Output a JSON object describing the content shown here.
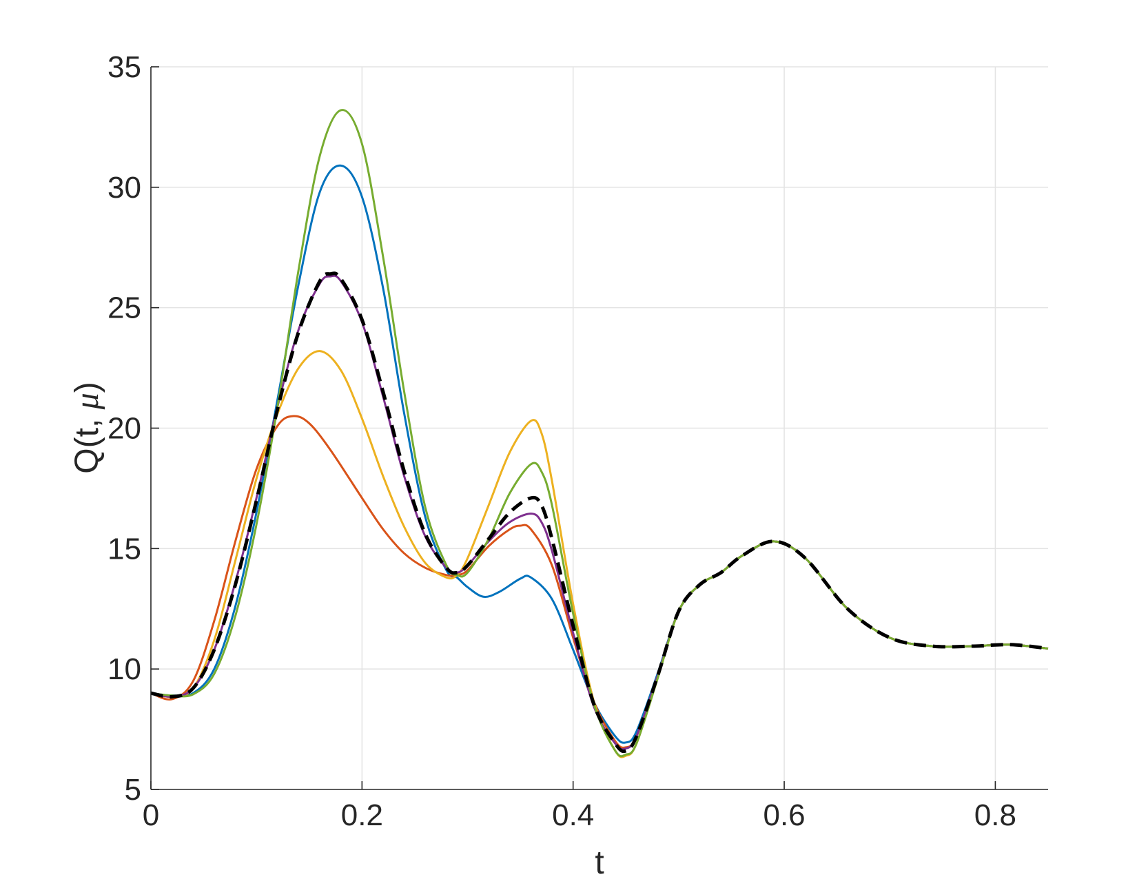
{
  "chart_data": {
    "type": "line",
    "title": "",
    "xlabel": "t",
    "ylabel": "Q(t, μ)",
    "ylabel_parts": {
      "prefix": "Q(t, ",
      "symbol": "μ",
      "suffix": ")"
    },
    "xlim": [
      0,
      0.85
    ],
    "ylim": [
      5,
      35
    ],
    "xticks": [
      0,
      0.2,
      0.4,
      0.6,
      0.8
    ],
    "xtick_labels": [
      "0",
      "0.2",
      "0.4",
      "0.6",
      "0.8"
    ],
    "yticks": [
      5,
      10,
      15,
      20,
      25,
      30,
      35
    ],
    "ytick_labels": [
      "5",
      "10",
      "15",
      "20",
      "25",
      "30",
      "35"
    ],
    "grid": true,
    "legend": "none",
    "series": [
      {
        "color": "#000000",
        "style": "dashed",
        "x": [
          0,
          0.02,
          0.04,
          0.06,
          0.08,
          0.1,
          0.12,
          0.14,
          0.16,
          0.17,
          0.18,
          0.2,
          0.22,
          0.24,
          0.26,
          0.28,
          0.29,
          0.3,
          0.32,
          0.34,
          0.36,
          0.37,
          0.38,
          0.4,
          0.42,
          0.44,
          0.45,
          0.46,
          0.48,
          0.5,
          0.52,
          0.54,
          0.56,
          0.59,
          0.62,
          0.66,
          0.7,
          0.74,
          0.78,
          0.8,
          0.82,
          0.85
        ],
        "y": [
          9.0,
          8.85,
          9.2,
          10.8,
          13.5,
          17.0,
          20.8,
          24.0,
          26.1,
          26.4,
          26.2,
          24.5,
          21.5,
          18.2,
          15.6,
          14.2,
          14.0,
          14.3,
          15.4,
          16.5,
          17.1,
          16.8,
          15.4,
          11.8,
          8.5,
          6.9,
          6.6,
          7.2,
          9.7,
          12.4,
          13.5,
          14.0,
          14.7,
          15.3,
          14.6,
          12.5,
          11.3,
          10.95,
          10.95,
          11.0,
          11.0,
          10.85
        ]
      },
      {
        "color": "#0072BD",
        "style": "solid",
        "x": [
          0,
          0.02,
          0.04,
          0.06,
          0.08,
          0.1,
          0.12,
          0.14,
          0.16,
          0.18,
          0.2,
          0.22,
          0.24,
          0.26,
          0.28,
          0.29,
          0.3,
          0.315,
          0.33,
          0.35,
          0.36,
          0.38,
          0.4,
          0.42,
          0.44,
          0.45,
          0.46,
          0.48,
          0.5,
          0.52,
          0.54,
          0.56,
          0.59,
          0.62,
          0.66,
          0.7,
          0.74,
          0.78,
          0.8,
          0.82,
          0.85
        ],
        "y": [
          9.0,
          8.9,
          9.0,
          10.0,
          12.6,
          16.5,
          21.2,
          26.0,
          29.8,
          30.9,
          29.6,
          25.8,
          20.6,
          16.3,
          14.1,
          13.8,
          13.4,
          13.0,
          13.2,
          13.75,
          13.8,
          12.9,
          10.8,
          8.6,
          7.2,
          6.95,
          7.4,
          9.8,
          12.4,
          13.5,
          14.0,
          14.7,
          15.3,
          14.6,
          12.5,
          11.3,
          10.95,
          10.95,
          11.0,
          11.0,
          10.85
        ]
      },
      {
        "color": "#D95319",
        "style": "solid",
        "x": [
          0,
          0.02,
          0.04,
          0.06,
          0.08,
          0.1,
          0.12,
          0.135,
          0.15,
          0.17,
          0.2,
          0.22,
          0.24,
          0.26,
          0.28,
          0.29,
          0.3,
          0.32,
          0.34,
          0.35,
          0.36,
          0.38,
          0.4,
          0.42,
          0.44,
          0.45,
          0.46,
          0.48,
          0.5,
          0.52,
          0.54,
          0.56,
          0.59,
          0.62,
          0.66,
          0.7,
          0.74,
          0.78,
          0.8,
          0.82,
          0.85
        ],
        "y": [
          9.0,
          8.75,
          9.5,
          12.0,
          15.3,
          18.3,
          20.1,
          20.5,
          20.2,
          19.1,
          17.1,
          15.8,
          14.8,
          14.2,
          13.9,
          13.9,
          14.1,
          15.1,
          15.8,
          15.95,
          15.8,
          14.3,
          11.3,
          8.6,
          7.0,
          6.75,
          7.2,
          9.7,
          12.4,
          13.5,
          14.0,
          14.7,
          15.3,
          14.6,
          12.5,
          11.3,
          10.95,
          10.95,
          11.0,
          11.0,
          10.85
        ]
      },
      {
        "color": "#EDB120",
        "style": "solid",
        "x": [
          0,
          0.02,
          0.04,
          0.06,
          0.08,
          0.1,
          0.12,
          0.14,
          0.16,
          0.18,
          0.2,
          0.22,
          0.24,
          0.26,
          0.28,
          0.29,
          0.3,
          0.32,
          0.34,
          0.36,
          0.37,
          0.38,
          0.4,
          0.42,
          0.44,
          0.45,
          0.46,
          0.48,
          0.5,
          0.52,
          0.54,
          0.56,
          0.59,
          0.62,
          0.66,
          0.7,
          0.74,
          0.78,
          0.8,
          0.82,
          0.85
        ],
        "y": [
          9.0,
          8.85,
          9.2,
          11.2,
          14.5,
          17.9,
          20.6,
          22.5,
          23.2,
          22.4,
          20.4,
          18.0,
          15.9,
          14.4,
          13.8,
          13.9,
          14.6,
          16.8,
          19.0,
          20.3,
          19.8,
          17.8,
          12.7,
          8.6,
          6.6,
          6.4,
          6.9,
          9.6,
          12.4,
          13.5,
          14.0,
          14.7,
          15.3,
          14.6,
          12.5,
          11.3,
          10.95,
          10.95,
          11.0,
          11.0,
          10.85
        ]
      },
      {
        "color": "#7E2F8E",
        "style": "solid",
        "x": [
          0,
          0.02,
          0.04,
          0.06,
          0.08,
          0.1,
          0.12,
          0.14,
          0.16,
          0.17,
          0.18,
          0.2,
          0.22,
          0.24,
          0.26,
          0.28,
          0.29,
          0.3,
          0.32,
          0.34,
          0.36,
          0.37,
          0.38,
          0.4,
          0.42,
          0.44,
          0.45,
          0.46,
          0.48,
          0.5,
          0.52,
          0.54,
          0.56,
          0.59,
          0.62,
          0.66,
          0.7,
          0.74,
          0.78,
          0.8,
          0.82,
          0.85
        ],
        "y": [
          9.0,
          8.85,
          9.2,
          10.8,
          13.6,
          17.1,
          20.9,
          24.1,
          26.0,
          26.3,
          26.1,
          24.4,
          21.3,
          18.0,
          15.5,
          14.2,
          14.0,
          14.3,
          15.3,
          16.1,
          16.45,
          16.1,
          14.9,
          11.5,
          8.4,
          6.9,
          6.7,
          7.2,
          9.7,
          12.4,
          13.5,
          14.0,
          14.7,
          15.3,
          14.6,
          12.5,
          11.3,
          10.95,
          10.95,
          11.0,
          11.0,
          10.85
        ]
      },
      {
        "color": "#77AC30",
        "style": "solid",
        "x": [
          0,
          0.02,
          0.04,
          0.06,
          0.08,
          0.1,
          0.12,
          0.14,
          0.16,
          0.18,
          0.2,
          0.22,
          0.24,
          0.26,
          0.28,
          0.29,
          0.3,
          0.32,
          0.34,
          0.36,
          0.37,
          0.38,
          0.4,
          0.42,
          0.44,
          0.45,
          0.46,
          0.48,
          0.5,
          0.52,
          0.54,
          0.56,
          0.59,
          0.62,
          0.66,
          0.7,
          0.74,
          0.78,
          0.8,
          0.82,
          0.85
        ],
        "y": [
          9.0,
          8.9,
          8.95,
          9.8,
          12.2,
          16.0,
          20.9,
          26.6,
          31.3,
          33.2,
          31.8,
          27.1,
          21.5,
          16.7,
          14.3,
          13.9,
          14.0,
          15.4,
          17.3,
          18.5,
          18.2,
          16.8,
          12.3,
          8.5,
          6.6,
          6.45,
          6.9,
          9.6,
          12.4,
          13.5,
          14.0,
          14.7,
          15.3,
          14.6,
          12.5,
          11.3,
          10.95,
          10.95,
          11.0,
          11.0,
          10.85
        ]
      }
    ]
  }
}
